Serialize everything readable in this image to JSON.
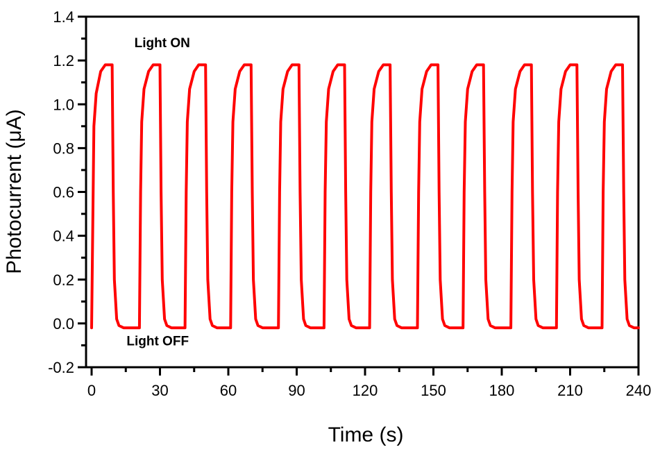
{
  "chart_data": {
    "type": "line",
    "title": "",
    "xlabel": "Time (s)",
    "ylabel": "Photocurrent (μA)",
    "xlim": [
      0,
      240
    ],
    "ylim": [
      -0.2,
      1.4
    ],
    "xticks": [
      0,
      30,
      60,
      90,
      120,
      150,
      180,
      210,
      240
    ],
    "xtick_labels": [
      "0",
      "30",
      "60",
      "90",
      "120",
      "150",
      "180",
      "210",
      "240"
    ],
    "yticks": [
      -0.2,
      0.0,
      0.2,
      0.4,
      0.6,
      0.8,
      1.0,
      1.2,
      1.4
    ],
    "ytick_labels": [
      "-0.2",
      "0.0",
      "0.2",
      "0.4",
      "0.6",
      "0.8",
      "1.0",
      "1.2",
      "1.4"
    ],
    "grid": false,
    "legend": "none",
    "color": "#ff0000",
    "series": [
      {
        "x": [
          0,
          1,
          2,
          4,
          6,
          7,
          9,
          9.5,
          10,
          11,
          12,
          14,
          18,
          21,
          21.5,
          22,
          23,
          25,
          27,
          28,
          30,
          30.5,
          31,
          32,
          33,
          35,
          38,
          41,
          41.5,
          42,
          43,
          45,
          47,
          48,
          50,
          50.5,
          51,
          52,
          53,
          55,
          58,
          61,
          61.5,
          62,
          63,
          65,
          67,
          68,
          70,
          70.5,
          71,
          72,
          73,
          75,
          78,
          82,
          82.5,
          83,
          84,
          86,
          88,
          89,
          91,
          91.5,
          92,
          93,
          94,
          96,
          99,
          102,
          102.5,
          103,
          104,
          106,
          108,
          109,
          111,
          111.5,
          112,
          113,
          114,
          116,
          119,
          122,
          122.5,
          123,
          124,
          126,
          128,
          129,
          131,
          131.5,
          132,
          133,
          134,
          136,
          139,
          143,
          143.5,
          144,
          145,
          147,
          149,
          150,
          152,
          152.5,
          153,
          154,
          155,
          157,
          160,
          163,
          163.5,
          164,
          165,
          167,
          169,
          170,
          172,
          172.5,
          173,
          174,
          175,
          177,
          180,
          184,
          184.5,
          185,
          186,
          188,
          190,
          191,
          193,
          193.5,
          194,
          195,
          196,
          198,
          201,
          204,
          204.5,
          205,
          206,
          208,
          210,
          211,
          213,
          213.5,
          214,
          215,
          216,
          218,
          221,
          224,
          224.5,
          225,
          226,
          228,
          230,
          231,
          233,
          233.5,
          234,
          235,
          236,
          238,
          240
        ],
        "y": [
          -0.02,
          0.9,
          1.05,
          1.15,
          1.18,
          1.18,
          1.18,
          0.6,
          0.2,
          0.02,
          -0.01,
          -0.02,
          -0.02,
          -0.02,
          0.6,
          0.92,
          1.07,
          1.15,
          1.18,
          1.18,
          1.18,
          0.6,
          0.2,
          0.02,
          -0.01,
          -0.02,
          -0.02,
          -0.02,
          0.6,
          0.92,
          1.07,
          1.15,
          1.18,
          1.18,
          1.18,
          0.6,
          0.2,
          0.02,
          -0.01,
          -0.02,
          -0.02,
          -0.02,
          0.6,
          0.92,
          1.07,
          1.15,
          1.18,
          1.18,
          1.18,
          0.6,
          0.2,
          0.02,
          -0.01,
          -0.02,
          -0.02,
          -0.02,
          0.6,
          0.92,
          1.07,
          1.15,
          1.18,
          1.18,
          1.18,
          0.6,
          0.2,
          0.02,
          -0.01,
          -0.02,
          -0.02,
          -0.02,
          0.6,
          0.92,
          1.07,
          1.15,
          1.18,
          1.18,
          1.18,
          0.6,
          0.2,
          0.02,
          -0.01,
          -0.02,
          -0.02,
          -0.02,
          0.6,
          0.92,
          1.07,
          1.15,
          1.18,
          1.18,
          1.18,
          0.6,
          0.2,
          0.02,
          -0.01,
          -0.02,
          -0.02,
          -0.02,
          0.6,
          0.92,
          1.07,
          1.15,
          1.18,
          1.18,
          1.18,
          0.6,
          0.2,
          0.02,
          -0.01,
          -0.02,
          -0.02,
          -0.02,
          0.6,
          0.92,
          1.07,
          1.15,
          1.18,
          1.18,
          1.18,
          0.6,
          0.2,
          0.02,
          -0.01,
          -0.02,
          -0.02,
          -0.02,
          0.6,
          0.92,
          1.07,
          1.15,
          1.18,
          1.18,
          1.18,
          0.6,
          0.2,
          0.02,
          -0.01,
          -0.02,
          -0.02,
          -0.02,
          0.6,
          0.92,
          1.07,
          1.15,
          1.18,
          1.18,
          1.18,
          0.6,
          0.2,
          0.02,
          -0.01,
          -0.02,
          -0.02,
          -0.02,
          0.6,
          0.92,
          1.07,
          1.15,
          1.18,
          1.18,
          1.18,
          0.6,
          0.2,
          0.02,
          -0.01,
          -0.02,
          -0.02
        ]
      }
    ],
    "annotations": [
      {
        "text": "Light ON",
        "x": 31,
        "y": 1.26
      },
      {
        "text": "Light OFF",
        "x": 29,
        "y": -0.1
      }
    ]
  }
}
